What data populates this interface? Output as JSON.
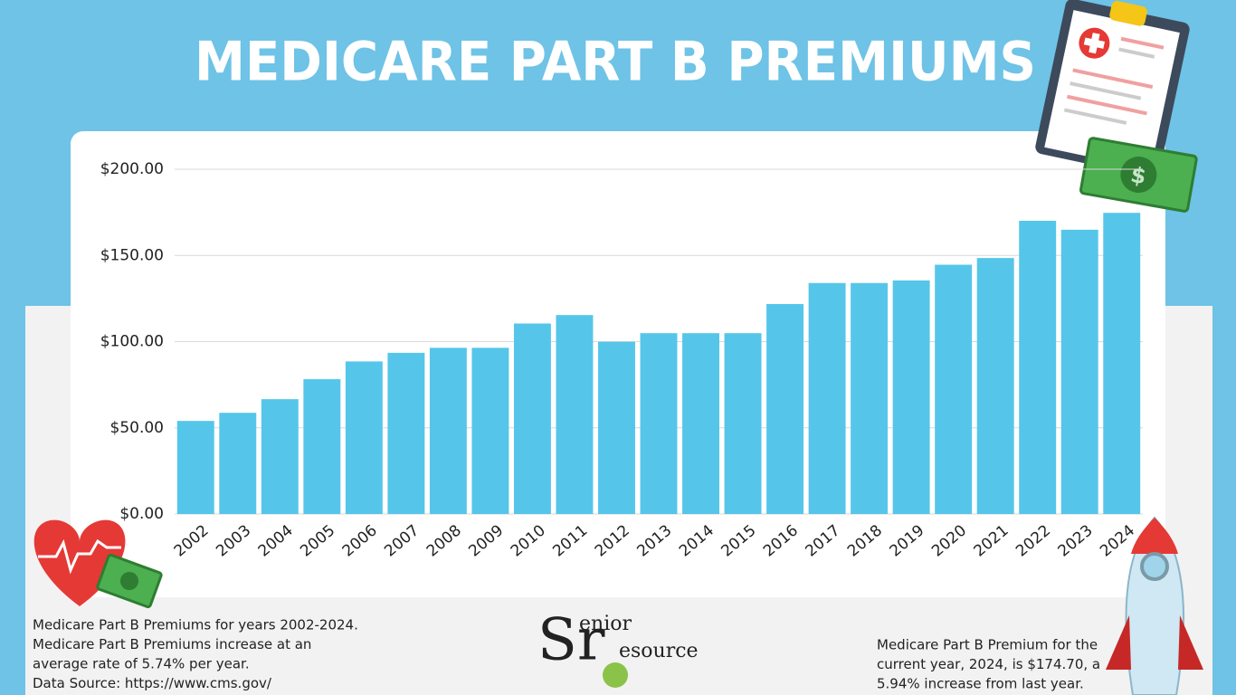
{
  "chart_data": {
    "type": "bar",
    "title": "MEDICARE PART B PREMIUMS",
    "categories": [
      "2002",
      "2003",
      "2004",
      "2005",
      "2006",
      "2007",
      "2008",
      "2009",
      "2010",
      "2011",
      "2012",
      "2013",
      "2014",
      "2015",
      "2016",
      "2017",
      "2018",
      "2019",
      "2020",
      "2021",
      "2022",
      "2023",
      "2024"
    ],
    "values": [
      54.0,
      58.7,
      66.6,
      78.2,
      88.5,
      93.5,
      96.4,
      96.4,
      110.5,
      115.4,
      99.9,
      104.9,
      104.9,
      104.9,
      121.8,
      134.0,
      134.0,
      135.5,
      144.6,
      148.5,
      170.1,
      164.9,
      174.7
    ],
    "color": "#55c6e9",
    "ylim": [
      0,
      200
    ],
    "yticks": [
      {
        "value": 0,
        "label": "$0.00"
      },
      {
        "value": 50,
        "label": "$50.00"
      },
      {
        "value": 100,
        "label": "$100.00"
      },
      {
        "value": 150,
        "label": "$150.00"
      },
      {
        "value": 200,
        "label": "$200.00"
      }
    ],
    "grid": true
  },
  "footer": {
    "left": [
      "Medicare Part B Premiums for years 2002-2024.",
      "Medicare Part B Premiums increase at an",
      "average rate of 5.74% per year.",
      "Data Source: https://www.cms.gov/"
    ],
    "right": [
      "Medicare Part B Premium for the",
      "current year, 2024, is $174.70, a",
      "5.94% increase from last year."
    ]
  },
  "logo": {
    "big": "Sr",
    "top": "enior",
    "bottom": "esource"
  }
}
